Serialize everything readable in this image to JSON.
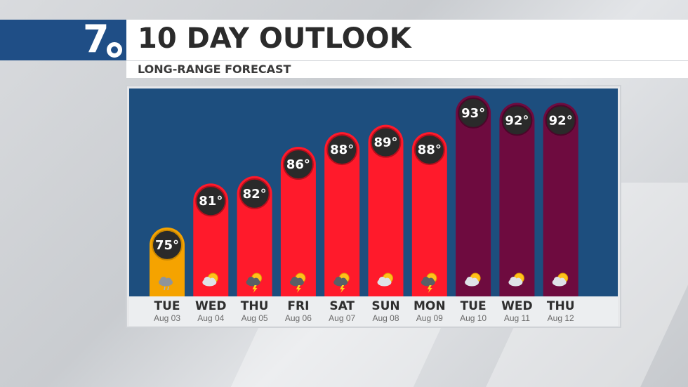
{
  "header": {
    "logo_text": "7",
    "title": "10 DAY OUTLOOK",
    "subtitle": "LONG-RANGE FORECAST"
  },
  "chart_data": {
    "type": "bar",
    "categories": [
      "TUE",
      "WED",
      "THU",
      "FRI",
      "SAT",
      "SUN",
      "MON",
      "TUE",
      "WED",
      "THU"
    ],
    "dates": [
      "Aug 03",
      "Aug 04",
      "Aug 05",
      "Aug 06",
      "Aug 07",
      "Aug 08",
      "Aug 09",
      "Aug 10",
      "Aug 11",
      "Aug 12"
    ],
    "values": [
      75,
      81,
      82,
      86,
      88,
      89,
      88,
      93,
      92,
      92
    ],
    "value_labels": [
      "75°",
      "81°",
      "82°",
      "86°",
      "88°",
      "89°",
      "88°",
      "93°",
      "92°",
      "92°"
    ],
    "conditions": [
      "rain-cloud-icon",
      "partly-cloudy-icon",
      "thunderstorm-icon",
      "thunderstorm-icon",
      "thunderstorm-icon",
      "partly-cloudy-icon",
      "thunderstorm-icon",
      "mostly-sunny-icon",
      "mostly-sunny-icon",
      "mostly-sunny-icon"
    ],
    "bar_colors": [
      "#f5a300",
      "#ff1a2b",
      "#ff1a2b",
      "#ff1a2b",
      "#ff1a2b",
      "#ff1a2b",
      "#ff1a2b",
      "#6e0b3f",
      "#6e0b3f",
      "#6e0b3f"
    ],
    "ylim": [
      68,
      95
    ],
    "grid": false,
    "colors": {
      "plot_bg": "#1d4e7e",
      "label_circle": "#2a2a2a",
      "rain_border": "#c98700",
      "red_border": "#b50e1c",
      "maroon_border": "#4a0629"
    }
  }
}
